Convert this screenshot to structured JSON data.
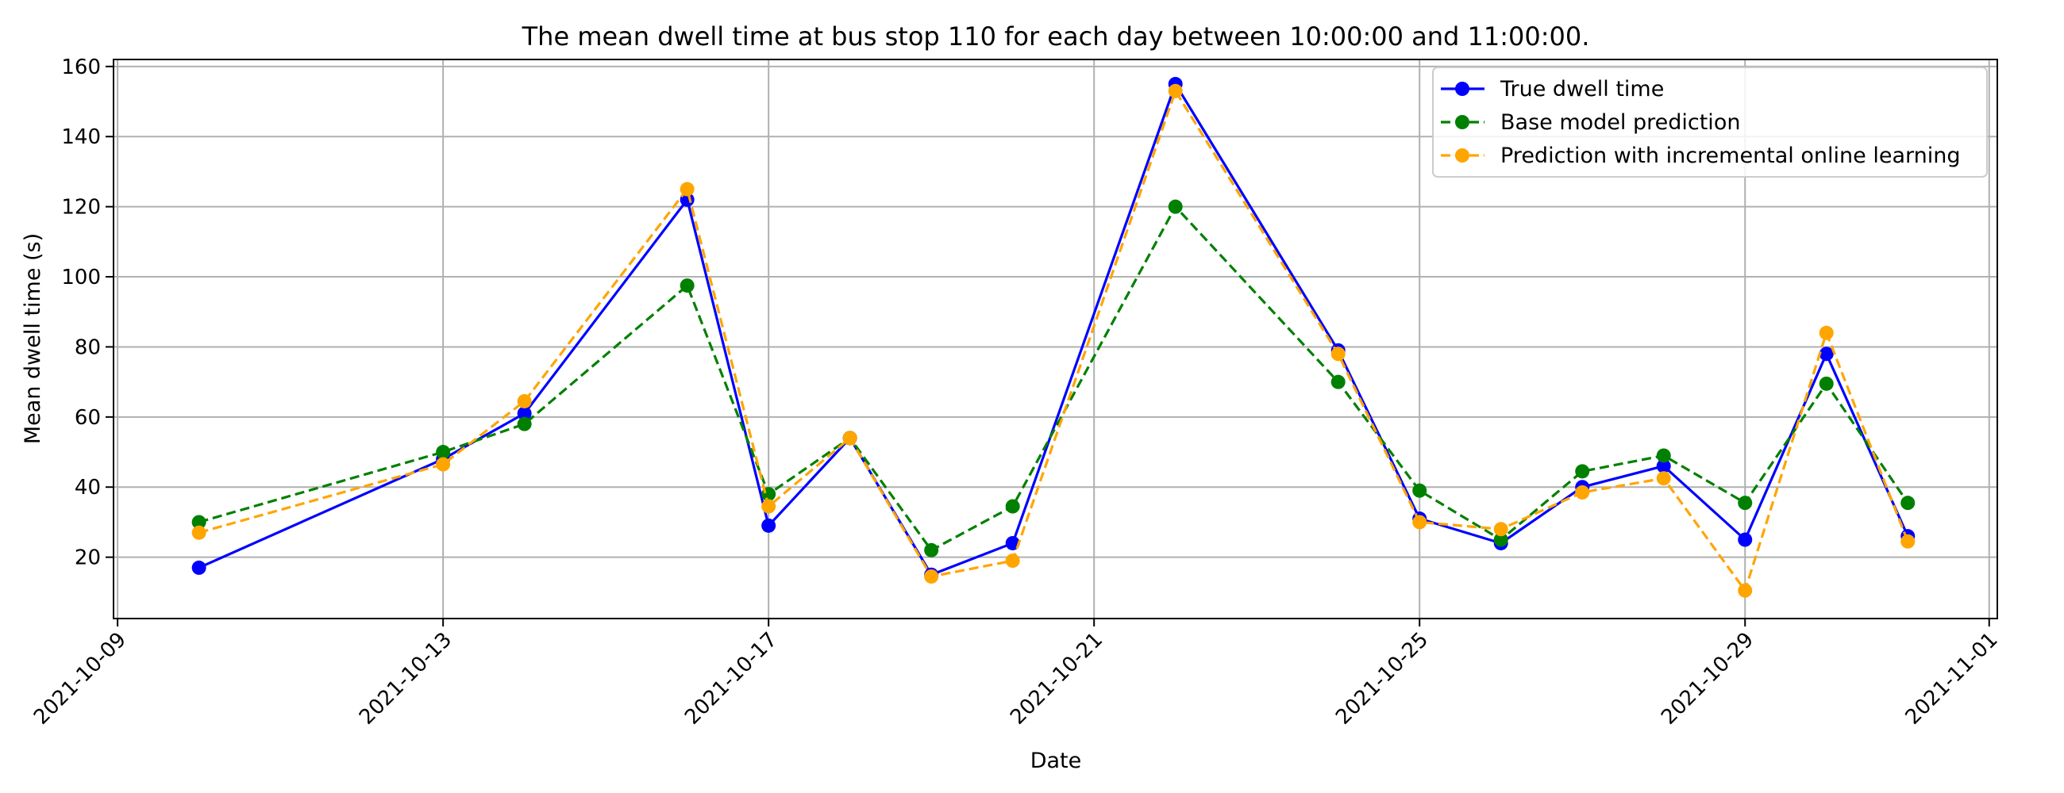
{
  "chart_data": {
    "type": "line",
    "title": "The mean dwell time at bus stop 110 for each day between 10:00:00 and 11:00:00.",
    "xlabel": "Date",
    "ylabel": "Mean dwell time (s)",
    "xlim": [
      "2021-10-08.95",
      "2021-11-01.1"
    ],
    "ylim": [
      2.5,
      162
    ],
    "grid": true,
    "legend_position": "top-right",
    "x_ticks": [
      "2021-10-09",
      "2021-10-13",
      "2021-10-17",
      "2021-10-21",
      "2021-10-25",
      "2021-10-29",
      "2021-11-01"
    ],
    "y_ticks": [
      20,
      40,
      60,
      80,
      100,
      120,
      140,
      160
    ],
    "x": [
      "2021-10-10",
      "2021-10-13",
      "2021-10-14",
      "2021-10-16",
      "2021-10-17",
      "2021-10-18",
      "2021-10-19",
      "2021-10-20",
      "2021-10-22",
      "2021-10-24",
      "2021-10-25",
      "2021-10-26",
      "2021-10-27",
      "2021-10-28",
      "2021-10-29",
      "2021-10-30",
      "2021-10-31"
    ],
    "series": [
      {
        "name": "True dwell time",
        "color": "#0000ff",
        "style": "solid",
        "values": [
          17,
          48,
          61,
          122,
          29,
          54,
          15,
          24,
          155,
          79,
          31,
          24,
          40,
          46,
          25,
          78,
          26
        ]
      },
      {
        "name": "Base model prediction",
        "color": "#008000",
        "style": "dashed",
        "values": [
          30,
          50,
          58,
          97.5,
          38,
          54,
          22,
          34.5,
          120,
          70,
          39,
          25,
          44.5,
          49,
          35.5,
          69.5,
          35.5
        ]
      },
      {
        "name": "Prediction with incremental online learning",
        "color": "#ffa500",
        "style": "dashed",
        "values": [
          27,
          46.5,
          64.5,
          125,
          34.5,
          54,
          14.5,
          19,
          153,
          78,
          30,
          28,
          38.5,
          42.5,
          10.5,
          84,
          24.5
        ]
      }
    ]
  }
}
